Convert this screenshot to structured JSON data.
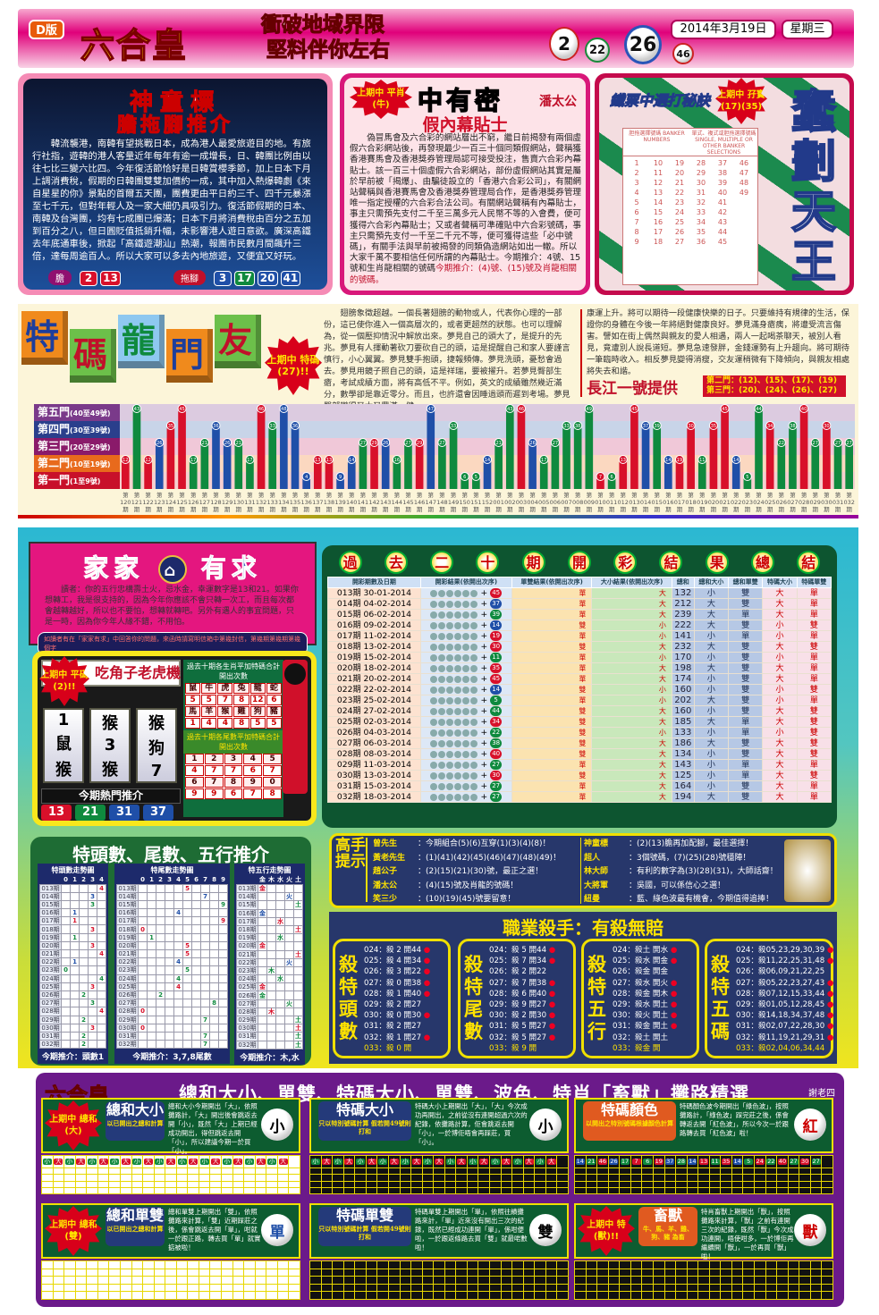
{
  "header": {
    "edition": "D版",
    "logo": "六合皇",
    "slogan": [
      "衝破地域界限",
      "堅料伴你左右"
    ],
    "balls": [
      "2",
      "22",
      "26",
      "46"
    ],
    "date": "2014年3月19日",
    "weekday": "星期三"
  },
  "panel1": {
    "title": "神童標",
    "subtitle": "膽拖腳推介",
    "text": "韓流襲港，南韓有望挑戰日本，成為港人最愛旅遊目的地。有旅行社指，遊韓的港人客量近年每年有逾一成增長，日、韓團比例由以往七比三變六比四。今年復活節恰好是日韓賞櫻季節，加上日本下月上調消費稅，假期的日韓團雙雙加價約一成，其中加入熱爆韓劇《來自星星的你》景點的首爾五天團，團費更由平日約三千、四千元暴漲至七千元，但對年輕人及一家大細仍具吸引力。復活節假期的日本、南韓及台灣團，均有七成團已爆滿；日本下月將消費稅由百分之五加到百分之八，但日圓貶值抵銷升幅，未影響港人遊日意欲。廣深高鐵去年底通車後，掀起「高鐵遊潮汕」熱潮，報團市民數月間飆升三倍，達每周逾百人。所以大家可以多去內地旅遊，又便宜又好玩。",
    "dan_label": "膽",
    "dan": [
      "2",
      "13"
    ],
    "tuo_label": "拖腳",
    "tuo": [
      "3",
      "17",
      "20",
      "41"
    ]
  },
  "panel2": {
    "title": "中有密",
    "badge": "上期中 平肖(牛)",
    "author": "潘太公",
    "headline": "假內幕貼士",
    "text": "偽冒馬會及六合彩的網站層出不窮，繼日前揭發有兩個虛假六合彩網站後，再發現最少一百三十個同類假網站，聲稱獲香港賽馬會及香港獎券管理局認可接受投注，售賣六合彩內幕貼士。該一百三十個虛假六合彩網站，部份虛假網站其實是屬於早前被「揭爆」、由騙徒設立的「香港六合彩公司」，有關網站聲稱與香港賽馬會及香港獎券管理局合作，是香港獎券管理唯一指定授權的六合彩合法公司。有關網站聲稱有內幕貼士，事主只需預先支付二千至三萬多元人民幣不等的入會費，便可獲得六合彩內幕貼士；又或者聲稱可準確貼中六合彩號碼，事主只需預先支付一千至二千元不等，便可獲得這些「必中號碼」，有關手法與早前被揭發的同類偽造網站如出一轍。所以大家千萬不要相信任何所謂的內幕貼士。今期推介：4號、15號和生肖龍相關的號碼",
    "rec": "今期推介：(4)號、(15)號及肖龍相關的號碼。"
  },
  "panel3": {
    "banner": "鐵票中選打秘訣",
    "badge": "上期中 孖寶(17)(35)",
    "title": "蠢劃天王",
    "slip_head_left": "胆拖選擇號碼 BANKER NUMBERS",
    "slip_head_right": "單式、複式或胆拖選擇號碼 SINGLE, MULTIPLE OR OTHER BANKER SELECTIONS"
  },
  "dragon": {
    "title": [
      "特",
      "碼",
      "龍",
      "門",
      "友"
    ],
    "badge": "上期中 特碼 (27)!!",
    "text_left": "翅膀象徵超越。一個長著翅膀的動物或人，代表你心理的一部份，這已使你進入一個高層次的，或者更超然的狀態。也可以理解為，從一個壓抑情況中解放出來。夢見自己的頭大了，是提升的先兆。夢見有人揮動著砍刀要砍自己的頭，這是提醒自己和家人要謹言慎行，小心翼翼。夢見雙手抱頭，捷報頻傳。夢見洗頭，憂愁會過去。夢見用鏡子照自己的頭，這是祥瑞，要被擢升。若夢見臀部生瘡，考試成績方面，將有高低不平。例如，英文的成績雖然幾近滿分，數學卻是靠近零分。而且，也許還會因睡過頭而遲到考場。夢見臀部變得又大又豐滿，健",
    "text_right": "康運上升。將可以期待一段健康快樂的日子。只要維持有規律的生活，保證你的身體在今後一年將絕對健康良好。夢見滿身瘡痍，將遭受流言傷害。譬如在街上偶然與親友的愛人相遇，兩人一起喝茶聊天，被別人看見，竟遭別人說長道短。夢見急速發胖，金錢運勢有上升趨向。將可期待一筆臨時收入。相反夢見變得消瘦，交友運稍微有下降傾向，與親友相處將失去和諧。",
    "provider": "長江一號提供",
    "picks": [
      "第二門：(12)、(15)、(17)、(19)",
      "第三門：(20)、(24)、(26)、(27)"
    ]
  },
  "chart_data": {
    "type": "bar",
    "doors": [
      {
        "name": "第五門",
        "range": "(40至49號)"
      },
      {
        "name": "第四門",
        "range": "(30至39號)"
      },
      {
        "name": "第三門",
        "range": "(20至29號)"
      },
      {
        "name": "第二門",
        "range": "(10至19號)"
      },
      {
        "name": "第一門",
        "range": "(1至9號)"
      }
    ],
    "categories": [
      "120",
      "121",
      "122",
      "123",
      "124",
      "125",
      "126",
      "127",
      "128",
      "129",
      "130",
      "131",
      "132",
      "133",
      "134",
      "135",
      "136",
      "137",
      "138",
      "139",
      "140",
      "141",
      "142",
      "143",
      "144",
      "145",
      "146",
      "147",
      "148",
      "149",
      "150",
      "151",
      "152",
      "001",
      "002",
      "003",
      "004",
      "005",
      "006",
      "007",
      "008",
      "009",
      "010",
      "011",
      "012",
      "013",
      "014",
      "015",
      "016",
      "017",
      "018",
      "019",
      "020",
      "021",
      "022",
      "023",
      "024",
      "025",
      "026",
      "027",
      "028",
      "029",
      "030",
      "031",
      "032"
    ],
    "values": [
      12,
      43,
      12,
      26,
      35,
      45,
      17,
      21,
      36,
      26,
      21,
      17,
      46,
      33,
      48,
      36,
      4,
      13,
      13,
      9,
      14,
      27,
      29,
      26,
      16,
      27,
      29,
      47,
      27,
      33,
      6,
      5,
      14,
      21,
      43,
      46,
      26,
      17,
      27,
      33,
      38,
      49,
      7,
      6,
      13,
      45,
      37,
      39,
      14,
      19,
      30,
      11,
      35,
      45,
      14,
      5,
      44,
      34,
      22,
      38,
      40,
      27,
      30,
      27,
      27
    ],
    "ylim": [
      0,
      49
    ],
    "colors": {
      "red": "#d8102a",
      "blue": "#1f4fa8",
      "green": "#0f8a3e"
    }
  },
  "family": {
    "title_left": "家家",
    "title_right": "有求",
    "text": "讀者：你的五行忠構壽土火，忌水金，幸運數字是13和21。如果你想轉工，我是很支持的，因為今年你應該不會只轉一次工，而且每次都會越轉越好，所以也不要怕，想轉就轉吧。另外有遇人的事宜問題，只是一時，因為你今年人緣不錯，不用怕。",
    "note": "如讀者有在「家家有求」中回答你的問題，來函時請寫明信箱中第幾封信，第幾期第幾期第幾個字"
  },
  "slot": {
    "title": "吃角子老虎機",
    "badge": "上期中 平碼 (2)!!",
    "reels": [
      [
        "1",
        "鼠",
        "猴"
      ],
      [
        "猴",
        "3",
        "猴"
      ],
      [
        "猴",
        "狗",
        "7"
      ]
    ],
    "zodiac_title": "過去十期各生肖平加特碼合計開出次數",
    "zodiac": [
      [
        "鼠",
        "5"
      ],
      [
        "牛",
        "5"
      ],
      [
        "虎",
        "7"
      ],
      [
        "兔",
        "8"
      ],
      [
        "龍",
        "12"
      ],
      [
        "蛇",
        "6"
      ],
      [
        "馬",
        "1"
      ],
      [
        "羊",
        "4"
      ],
      [
        "猴",
        "4"
      ],
      [
        "雞",
        "8"
      ],
      [
        "狗",
        "5"
      ],
      [
        "豬",
        "5"
      ]
    ],
    "tail_title": "過去十期各尾數平加特碼合計開出次數",
    "tails": [
      [
        "1",
        "4"
      ],
      [
        "2",
        "7"
      ],
      [
        "3",
        "7"
      ],
      [
        "4",
        "6"
      ],
      [
        "5",
        "7"
      ],
      [
        "6",
        "9"
      ],
      [
        "7",
        "9"
      ],
      [
        "8",
        "6"
      ],
      [
        "9",
        "7"
      ],
      [
        "0",
        "8"
      ]
    ],
    "hot_title": "今期熱門推介",
    "hot": [
      "13",
      "21",
      "31",
      "37"
    ]
  },
  "trend": {
    "title": "特頭數、尾數、五行推介",
    "head_title": "特頭數走勢圖",
    "tail_title": "特尾數走勢圖",
    "elem_title": "特五行走勢圖",
    "head_cols": [
      "0",
      "1",
      "2",
      "3",
      "4"
    ],
    "tail_cols": [
      "0",
      "1",
      "2",
      "3",
      "4",
      "5",
      "6",
      "7",
      "8",
      "9"
    ],
    "elem_cols": [
      "金",
      "木",
      "水",
      "火",
      "土"
    ],
    "periods": [
      "013期",
      "014期",
      "015期",
      "016期",
      "017期",
      "018期",
      "019期",
      "020期",
      "021期",
      "022期",
      "023期",
      "024期",
      "025期",
      "026期",
      "027期",
      "028期",
      "029期",
      "030期",
      "031期",
      "032期"
    ],
    "heads": [
      "4",
      "3",
      "3",
      "1",
      "1",
      "3",
      "1",
      "3",
      "4",
      "1",
      "0",
      "4",
      "3",
      "2",
      "3",
      "4",
      "2",
      "3",
      "2",
      "2"
    ],
    "tails": [
      "5",
      "7",
      "9",
      "4",
      "9",
      "0",
      "1",
      "5",
      "5",
      "4",
      "5",
      "4",
      "4",
      "2",
      "8",
      "0",
      "7",
      "0",
      "7",
      "7"
    ],
    "elems": [
      "金",
      "火",
      "土",
      "金",
      "水",
      "土",
      "水",
      "金",
      "土",
      "火",
      "木",
      "水",
      "金",
      "金",
      "火",
      "木",
      "土",
      "土",
      "土",
      "土"
    ],
    "head_rec": "今期推介：頭數1",
    "tail_rec": "今期推介：3,7,8尾數",
    "elem_rec": "今期推介：木,水"
  },
  "results": {
    "title": [
      "過",
      "去",
      "二",
      "十",
      "期",
      "開",
      "彩",
      "結",
      "果",
      "總",
      "結"
    ],
    "headers": [
      "開彩期數及日期",
      "開彩結果(依開出次序)",
      "單雙結果(依開出次序)",
      "大小結果(依開出次序)",
      "總和",
      "總和大小",
      "總和單雙",
      "特碼大小",
      "特碼單雙"
    ],
    "rows": [
      [
        "013期 30-01-2014",
        "45",
        "單",
        "大",
        "132",
        "小",
        "雙",
        "大",
        "單"
      ],
      [
        "014期 04-02-2014",
        "37",
        "單",
        "大",
        "212",
        "大",
        "雙",
        "大",
        "單"
      ],
      [
        "015期 06-02-2014",
        "39",
        "單",
        "大",
        "239",
        "大",
        "單",
        "大",
        "單"
      ],
      [
        "016期 09-02-2014",
        "14",
        "雙",
        "小",
        "222",
        "大",
        "雙",
        "小",
        "雙"
      ],
      [
        "017期 11-02-2014",
        "19",
        "單",
        "小",
        "141",
        "小",
        "單",
        "小",
        "單"
      ],
      [
        "018期 13-02-2014",
        "30",
        "雙",
        "大",
        "232",
        "大",
        "雙",
        "大",
        "雙"
      ],
      [
        "019期 15-02-2014",
        "11",
        "單",
        "小",
        "170",
        "小",
        "雙",
        "小",
        "單"
      ],
      [
        "020期 18-02-2014",
        "35",
        "單",
        "大",
        "198",
        "大",
        "雙",
        "大",
        "單"
      ],
      [
        "021期 20-02-2014",
        "45",
        "單",
        "大",
        "174",
        "小",
        "雙",
        "大",
        "單"
      ],
      [
        "022期 22-02-2014",
        "14",
        "雙",
        "小",
        "160",
        "小",
        "雙",
        "小",
        "雙"
      ],
      [
        "023期 25-02-2014",
        "5",
        "單",
        "小",
        "202",
        "大",
        "雙",
        "小",
        "單"
      ],
      [
        "024期 27-02-2014",
        "44",
        "雙",
        "大",
        "160",
        "小",
        "雙",
        "大",
        "雙"
      ],
      [
        "025期 02-03-2014",
        "34",
        "雙",
        "大",
        "185",
        "大",
        "單",
        "大",
        "雙"
      ],
      [
        "026期 04-03-2014",
        "22",
        "雙",
        "小",
        "133",
        "小",
        "單",
        "小",
        "雙"
      ],
      [
        "027期 06-03-2014",
        "38",
        "雙",
        "大",
        "186",
        "大",
        "雙",
        "大",
        "雙"
      ],
      [
        "028期 08-03-2014",
        "40",
        "雙",
        "大",
        "134",
        "小",
        "雙",
        "大",
        "雙"
      ],
      [
        "029期 11-03-2014",
        "27",
        "單",
        "大",
        "143",
        "小",
        "單",
        "大",
        "單"
      ],
      [
        "030期 13-03-2014",
        "30",
        "雙",
        "大",
        "125",
        "小",
        "單",
        "大",
        "雙"
      ],
      [
        "031期 15-03-2014",
        "27",
        "單",
        "大",
        "164",
        "小",
        "雙",
        "大",
        "單"
      ],
      [
        "032期 18-03-2014",
        "27",
        "單",
        "大",
        "194",
        "大",
        "雙",
        "大",
        "單"
      ]
    ]
  },
  "tips": {
    "title": "高手提示",
    "items": [
      [
        "曾先生",
        "：今期組合(5)(6)互穿(1)(3)(4)(8)！"
      ],
      [
        "黃老先生",
        "：(1)(41)(42)(45)(46)(47)(48)(49)！"
      ],
      [
        "趙公子",
        "：(2)(15)(21)(30)號，最正之選！"
      ],
      [
        "潘太公",
        "：(4)(15)號及肖龍的號碼！"
      ],
      [
        "笑三少",
        "：(10)(19)(45)號要留意！"
      ],
      [
        "神童標",
        "：(2)(13)膽再加配腳，最佳選擇！"
      ],
      [
        "超人",
        "：3個號碼，(7)(25)(28)號穩陣！"
      ],
      [
        "林大師",
        "：有利的數字為(3)(28)(31)，大師話齋！"
      ],
      [
        "大將軍",
        "：吳國，可以係信心之選！"
      ],
      [
        "紐曼",
        "：藍、綠色波最有機會，今期值得追捧！"
      ]
    ]
  },
  "killer": {
    "title": "職業殺手：有殺無賠",
    "boxes": [
      {
        "label": "殺特頭數",
        "rows": [
          [
            "024：殺 2",
            "開44",
            true
          ],
          [
            "025：殺 4",
            "開34",
            true
          ],
          [
            "026：殺 3",
            "開22",
            true
          ],
          [
            "027：殺 0",
            "開38",
            true
          ],
          [
            "028：殺 1",
            "開40",
            true
          ],
          [
            "029：殺 2",
            "開27",
            false
          ],
          [
            "030：殺 0",
            "開30",
            true
          ],
          [
            "031：殺 2",
            "開27",
            false
          ],
          [
            "032：殺 1",
            "開27",
            true
          ],
          [
            "033：殺 0",
            "開",
            false
          ]
        ]
      },
      {
        "label": "殺特尾數",
        "rows": [
          [
            "024：殺 5",
            "開44",
            true
          ],
          [
            "025：殺 7",
            "開34",
            true
          ],
          [
            "026：殺 2",
            "開22",
            false
          ],
          [
            "027：殺 7",
            "開38",
            true
          ],
          [
            "028：殺 6",
            "開40",
            true
          ],
          [
            "029：殺 9",
            "開27",
            true
          ],
          [
            "030：殺 2",
            "開30",
            true
          ],
          [
            "031：殺 5",
            "開27",
            true
          ],
          [
            "032：殺 5",
            "開27",
            true
          ],
          [
            "033：殺 9",
            "開",
            false
          ]
        ]
      },
      {
        "label": "殺特五行",
        "rows": [
          [
            "024：殺土",
            "開水",
            true
          ],
          [
            "025：殺水",
            "開金",
            true
          ],
          [
            "026：殺金",
            "開金",
            false
          ],
          [
            "027：殺水",
            "開火",
            true
          ],
          [
            "028：殺金",
            "開木",
            true
          ],
          [
            "029：殺水",
            "開土",
            true
          ],
          [
            "030：殺火",
            "開土",
            true
          ],
          [
            "031：殺金",
            "開土",
            true
          ],
          [
            "032：殺土",
            "開土",
            false
          ],
          [
            "033：殺金",
            "開",
            false
          ]
        ]
      },
      {
        "label": "殺特五碼",
        "rows": [
          [
            "024：殺05,23,29,30,39",
            "",
            true
          ],
          [
            "025：殺11,22,25,31,48",
            "",
            true
          ],
          [
            "026：殺06,09,21,22,25",
            "",
            false
          ],
          [
            "027：殺05,22,23,27,43",
            "",
            true
          ],
          [
            "028：殺07,12,15,33,44",
            "",
            true
          ],
          [
            "029：殺01,05,12,28,45",
            "",
            true
          ],
          [
            "030：殺14,18,34,37,48",
            "",
            true
          ],
          [
            "031：殺02,07,22,28,30",
            "",
            true
          ],
          [
            "032：殺11,19,21,29,31",
            "",
            true
          ],
          [
            "033：殺02,04,06,34,44",
            "",
            false
          ]
        ]
      }
    ]
  },
  "road": {
    "title": "總和大小、單雙、特碼大小、單雙、波色、特肖「畜獸」攤路精選",
    "author": "謝老四",
    "panels": [
      {
        "label": "總和大小",
        "sub": "以已開出之總和計算",
        "badge": "上期中 總和(大)",
        "text": "總和大小今期開出「大」，依照攤路計，「大」開出後會跳返去開「小」，既然「大」上期已經成功開出，得但跳返去開「小」，所以建議今期一於買「小」。",
        "pick": "小",
        "dark": false,
        "row": [
          "小",
          "大",
          "小",
          "大",
          "小",
          "大",
          "小",
          "大",
          "小",
          "大",
          "小",
          "大",
          "小",
          "大",
          "小",
          "大",
          "小",
          "大",
          "小",
          "大",
          "小",
          "大"
        ]
      },
      {
        "label": "特碼大小",
        "sub": "只以特別號碼計算 假若開49號則打和",
        "text": "特碼大小上期開出「大」，「大」今次成功再開出，之前從沒有連開超過六次的紀錄，依攤路計算，佢會跳返去開「小」，一於博佢唔會再踩莊，買「小」。",
        "pick": "小",
        "dark": true,
        "row": [
          "小",
          "大",
          "小",
          "大",
          "小",
          "大",
          "小",
          "大",
          "小",
          "大",
          "小",
          "大",
          "小",
          "大",
          "小",
          "大",
          "小",
          "大",
          "小",
          "大",
          "小",
          "大"
        ]
      },
      {
        "label": "特碼顏色",
        "sub": "以開出之特別號碼根據顏色計算",
        "text": "特碼顏色波今期開出「綠色波」，按照攤路計，「綠色波」踩完莊之後，係會轉返去開「紅色波」，所以今次一於跟路轉去買「紅色波」啦！",
        "pick": "紅",
        "dark": true,
        "row": [
          "14",
          "21",
          "46",
          "26",
          "17",
          "7",
          "6",
          "19",
          "37",
          "28",
          "14",
          "13",
          "11",
          "35",
          "14",
          "5",
          "24",
          "22",
          "40",
          "27",
          "30",
          "27"
        ]
      },
      {
        "label": "總和單雙",
        "sub": "以已開出之總和計算",
        "badge": "上期中 總和(雙)",
        "text": "總和單雙上期開出「雙」，依照攤路來計算，「雙」近期踩莊之後，係會跳返去開「單」，咁就一於跟正路，轉去買「單」就實掂被啦！",
        "pick": "單",
        "dark": false,
        "row": []
      },
      {
        "label": "特碼單雙",
        "sub": "只以特別號碼計算 假若開49號則打和",
        "text": "特碼單雙上期開出「單」，依照往績攤路來計，「單」近來沒有開出三次的紀錄，既然已經成功連開「單」，係咁便啦，一於跟返條路去買「雙」就最啱數啦！",
        "pick": "雙",
        "dark": true,
        "row": []
      },
      {
        "label": "畜獸",
        "sub": "牛、馬、羊、雞、狗、豬 為畜",
        "badge": "上期中 特(獸)!!",
        "text": "特肖畜獸上期開出「獸」，按照攤路來計算，「獸」之前有連開三次的紀錄，既然「獸」今次成功連開，唔使咁多，一於博佢再繼續開「獸」，一於再買「獸」啦！",
        "pick": "獸",
        "dark": true,
        "row": []
      }
    ]
  }
}
